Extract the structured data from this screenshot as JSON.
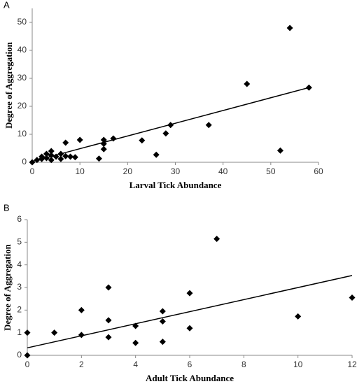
{
  "chart_data": [
    {
      "type": "scatter",
      "panel_label": "A",
      "xlabel": "Larval Tick Abundance",
      "ylabel": "Degree of Aggregation",
      "color": "#000000",
      "x": [
        0,
        1,
        2,
        2,
        3,
        3,
        4,
        4,
        4,
        5,
        6,
        6,
        7,
        7,
        8,
        9,
        10,
        14,
        15,
        15,
        15,
        17,
        23,
        26,
        28,
        29,
        37,
        45,
        52,
        54,
        58
      ],
      "y": [
        0,
        0.8,
        1.2,
        2,
        1.5,
        3,
        0.8,
        2.5,
        4,
        2,
        1.2,
        3,
        2.2,
        7,
        2,
        1.8,
        8,
        1.3,
        4.7,
        6.6,
        8,
        8.5,
        7.8,
        2.7,
        10.3,
        13.3,
        13.3,
        28,
        4.2,
        48,
        26.7
      ],
      "trendline": {
        "x": [
          0,
          58
        ],
        "y": [
          0.3,
          26.7
        ]
      },
      "xlim": [
        0,
        60
      ],
      "ylim": [
        0,
        55
      ],
      "xticks": [
        0,
        10,
        20,
        30,
        40,
        50,
        60
      ],
      "yticks": [
        0,
        10,
        20,
        30,
        40,
        50
      ]
    },
    {
      "type": "scatter",
      "panel_label": "B",
      "xlabel": "Adult Tick Abundance",
      "ylabel": "Degree of Aggregation",
      "color": "#000000",
      "x": [
        0,
        0,
        1,
        2,
        2,
        3,
        3,
        3,
        4,
        4,
        5,
        5,
        5,
        6,
        6,
        7,
        10,
        12
      ],
      "y": [
        0,
        1,
        1,
        0.9,
        2,
        0.8,
        1.55,
        3,
        0.55,
        1.3,
        0.6,
        1.5,
        1.95,
        1.2,
        2.75,
        5.15,
        1.72,
        2.55
      ],
      "trendline": {
        "x": [
          0,
          12
        ],
        "y": [
          0.33,
          3.53
        ]
      },
      "xlim": [
        0,
        12
      ],
      "ylim": [
        0,
        6
      ],
      "xticks": [
        0,
        2,
        4,
        6,
        8,
        10,
        12
      ],
      "yticks": [
        0,
        1,
        2,
        3,
        4,
        5,
        6
      ]
    }
  ]
}
